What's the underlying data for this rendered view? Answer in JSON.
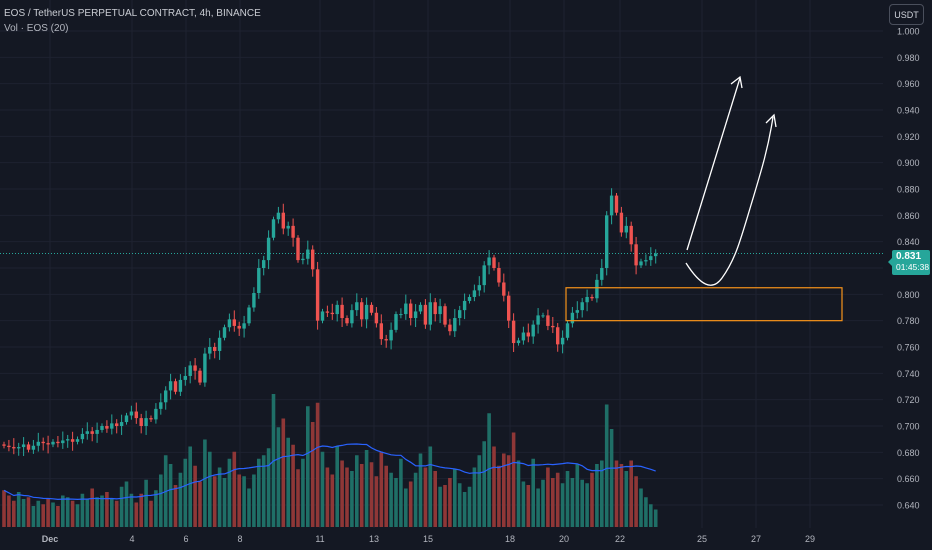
{
  "legend": {
    "symbol": "EOS / TetherUS PERPETUAL CONTRACT, 4h, BINANCE",
    "volume": "Vol · EOS (20)"
  },
  "toolbar": {
    "currency_label": "USDT"
  },
  "price_tag": {
    "price": "0.831",
    "countdown": "01:45:38",
    "color": "#26a69a"
  },
  "colors": {
    "up": "#26a69a",
    "down": "#ef5350",
    "volume_ma": "#2962ff",
    "zone": "#f7931a",
    "background": "#141823"
  },
  "chart_data": {
    "type": "candlestick",
    "xaxis_labels": [
      "Dec",
      "4",
      "6",
      "8",
      "11",
      "13",
      "15",
      "18",
      "20",
      "22",
      "25",
      "27",
      "29"
    ],
    "yaxis_ticks": [
      "1.000",
      "0.980",
      "0.960",
      "0.940",
      "0.920",
      "0.900",
      "0.880",
      "0.860",
      "0.840",
      "0.820",
      "0.800",
      "0.780",
      "0.760",
      "0.740",
      "0.720",
      "0.700",
      "0.680",
      "0.660",
      "0.640"
    ],
    "ylim": [
      0.633,
      1.006
    ],
    "closes": [
      0.685,
      0.684,
      0.683,
      0.684,
      0.686,
      0.682,
      0.685,
      0.688,
      0.687,
      0.686,
      0.688,
      0.687,
      0.689,
      0.69,
      0.688,
      0.69,
      0.694,
      0.696,
      0.694,
      0.697,
      0.7,
      0.698,
      0.702,
      0.7,
      0.703,
      0.708,
      0.711,
      0.706,
      0.7,
      0.706,
      0.705,
      0.713,
      0.718,
      0.727,
      0.734,
      0.726,
      0.735,
      0.738,
      0.746,
      0.742,
      0.733,
      0.755,
      0.76,
      0.757,
      0.767,
      0.775,
      0.781,
      0.776,
      0.774,
      0.778,
      0.79,
      0.801,
      0.82,
      0.826,
      0.843,
      0.857,
      0.862,
      0.85,
      0.852,
      0.843,
      0.826,
      0.827,
      0.834,
      0.819,
      0.78,
      0.787,
      0.786,
      0.785,
      0.792,
      0.782,
      0.778,
      0.788,
      0.794,
      0.781,
      0.792,
      0.786,
      0.778,
      0.766,
      0.765,
      0.773,
      0.785,
      0.785,
      0.793,
      0.782,
      0.787,
      0.792,
      0.777,
      0.794,
      0.785,
      0.791,
      0.777,
      0.772,
      0.782,
      0.788,
      0.795,
      0.798,
      0.803,
      0.807,
      0.822,
      0.828,
      0.82,
      0.809,
      0.799,
      0.78,
      0.763,
      0.765,
      0.771,
      0.768,
      0.777,
      0.784,
      0.784,
      0.776,
      0.775,
      0.762,
      0.767,
      0.778,
      0.786,
      0.788,
      0.794,
      0.798,
      0.797,
      0.811,
      0.82,
      0.86,
      0.875,
      0.862,
      0.847,
      0.852,
      0.838,
      0.822,
      0.825,
      0.826,
      0.829,
      0.831
    ],
    "volumes": [
      2.1,
      1.8,
      1.5,
      2.0,
      1.6,
      1.7,
      1.2,
      1.5,
      1.3,
      1.6,
      1.4,
      1.2,
      1.8,
      1.7,
      1.5,
      1.3,
      1.9,
      1.6,
      2.2,
      1.7,
      1.8,
      2.0,
      1.6,
      1.5,
      2.3,
      2.6,
      1.9,
      1.4,
      1.9,
      2.7,
      1.5,
      2.1,
      3.0,
      4.1,
      3.6,
      2.4,
      3.1,
      3.9,
      4.6,
      3.5,
      2.6,
      5.0,
      4.3,
      2.9,
      3.4,
      2.8,
      3.9,
      4.3,
      3.0,
      2.9,
      2.2,
      3.0,
      3.9,
      4.1,
      4.5,
      7.6,
      5.7,
      6.2,
      5.1,
      4.7,
      3.3,
      3.9,
      6.9,
      6.0,
      7.1,
      4.3,
      3.4,
      3.0,
      4.6,
      3.8,
      3.4,
      3.2,
      4.1,
      3.6,
      4.4,
      3.7,
      2.9,
      4.3,
      3.5,
      3.1,
      2.8,
      3.9,
      2.2,
      2.6,
      3.1,
      4.2,
      3.4,
      4.6,
      3.2,
      2.3,
      2.4,
      2.8,
      3.3,
      2.5,
      2.0,
      2.3,
      3.4,
      4.1,
      4.9,
      6.5,
      4.6,
      3.5,
      4.2,
      4.1,
      5.4,
      3.8,
      2.6,
      2.4,
      3.9,
      2.2,
      2.7,
      3.4,
      2.8,
      3.1,
      2.5,
      3.2,
      2.8,
      3.6,
      2.7,
      2.5,
      3.1,
      3.6,
      3.8,
      7.0,
      5.6,
      3.8,
      3.6,
      3.2,
      3.8,
      2.9,
      2.2,
      1.7,
      1.3,
      1.0
    ]
  },
  "annotations": {
    "zone_top": 0.805,
    "zone_bottom": 0.78
  }
}
